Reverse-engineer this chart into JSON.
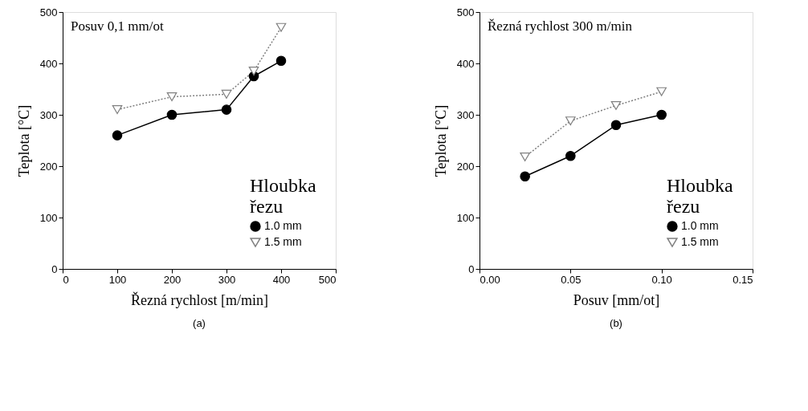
{
  "chart_data": [
    {
      "type": "line",
      "title": "(a)",
      "annotations": [
        "Posuv 0,1 mm/ot"
      ],
      "xlabel": "Řezná rychlost [m/min]",
      "ylabel": "Teplota [°C]",
      "legend_title": "Hloubka řezu",
      "legend": "bottom right",
      "grid": false,
      "xlim": [
        0,
        500
      ],
      "xticks": [
        0,
        100,
        200,
        300,
        400,
        500
      ],
      "ylim": [
        0,
        500
      ],
      "yticks": [
        0,
        100,
        200,
        300,
        400,
        500
      ],
      "series": [
        {
          "name": "1.0 mm",
          "color": "#000000",
          "marker": "circle",
          "line_style": "solid",
          "x": [
            100,
            200,
            300,
            350,
            400
          ],
          "values": [
            260,
            300,
            310,
            375,
            405
          ]
        },
        {
          "name": "1.5 mm",
          "color": "#808080",
          "marker": "triangle",
          "line_style": "dotted",
          "x": [
            100,
            200,
            300,
            350,
            400
          ],
          "values": [
            310,
            335,
            340,
            385,
            470
          ]
        }
      ]
    },
    {
      "type": "line",
      "title": "(b)",
      "annotations": [
        "Řezná rychlost 300 m/min"
      ],
      "xlabel": "Posuv [mm/ot]",
      "ylabel": "Teplota [°C]",
      "legend_title": "Hloubka řezu",
      "legend": "bottom right",
      "grid": false,
      "xlim": [
        0,
        0.15
      ],
      "xticks": [
        {
          "value": 0,
          "label": "0.00"
        },
        {
          "value": 0.05,
          "label": "0.05"
        },
        {
          "value": 0.1,
          "label": "0.10"
        },
        {
          "value": 0.15,
          "label": "0.15"
        }
      ],
      "ylim": [
        0,
        500
      ],
      "yticks": [
        0,
        100,
        200,
        300,
        400,
        500
      ],
      "series": [
        {
          "name": "1.0 mm",
          "color": "#000000",
          "marker": "circle",
          "line_style": "solid",
          "x": [
            0.025,
            0.05,
            0.075,
            0.1
          ],
          "values": [
            180,
            220,
            280,
            300
          ]
        },
        {
          "name": "1.5 mm",
          "color": "#808080",
          "marker": "triangle",
          "line_style": "dotted",
          "x": [
            0.025,
            0.05,
            0.075,
            0.1
          ],
          "values": [
            218,
            288,
            318,
            345
          ]
        }
      ]
    }
  ]
}
